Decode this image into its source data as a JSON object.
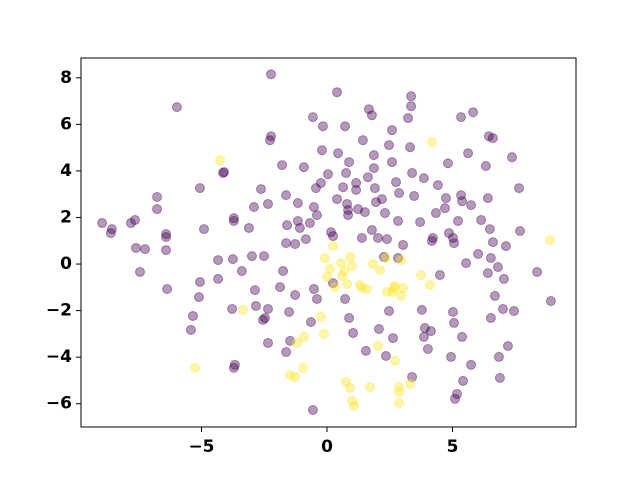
{
  "chart_data": {
    "type": "scatter",
    "xlim": [
      -9.8,
      9.92
    ],
    "ylim": [
      -7.0,
      8.85
    ],
    "xticks": [
      {
        "value": -5,
        "label": "−5"
      },
      0,
      5
    ],
    "yticks": [
      {
        "value": -6,
        "label": "−6"
      },
      {
        "value": -4,
        "label": "−4"
      },
      {
        "value": -2,
        "label": "−2"
      },
      0,
      2,
      4,
      6,
      8
    ],
    "marker_opacity": 0.4,
    "series": [
      {
        "color": "#440154",
        "x": [
          -8.96,
          -8.57,
          -8.61,
          -7.81,
          -7.65,
          -7.61,
          -7.25,
          -7.45,
          -6.77,
          -6.77,
          -6.41,
          -6.41,
          -6.41,
          -6.37,
          -2.23,
          -5.98,
          -5.06,
          -4.1,
          -4.14,
          -5.34,
          -5.42,
          -5.1,
          -5.06,
          -4.34,
          -3.71,
          -3.71,
          -3.75,
          -4.34,
          -3.78,
          -3.67,
          -3.71,
          -3.11,
          -2.87,
          -2.83,
          -2.47,
          -2.35,
          -2.55,
          -2.63,
          -2.35,
          -2.23,
          -2.27,
          -2.35,
          -2.51,
          -1.79,
          -1.63,
          -1.59,
          -1.63,
          -1.75,
          -1.51,
          -1.47,
          -1.27,
          -1.16,
          -1.16,
          -0.92,
          -0.84,
          -0.52,
          -0.56,
          -0.2,
          -0.16,
          -0.44,
          -0.4,
          0.04,
          0.16,
          0.24,
          0.4,
          0.4,
          0.44,
          0.64,
          0.72,
          0.76,
          0.8,
          0.84,
          0.88,
          0.84,
          1.16,
          1.16,
          1.24,
          1.43,
          1.51,
          1.63,
          1.67,
          1.79,
          1.79,
          1.87,
          1.87,
          1.91,
          1.95,
          2.03,
          2.19,
          2.31,
          2.39,
          2.47,
          2.59,
          2.59,
          2.75,
          2.83,
          2.87,
          3.03,
          3.23,
          3.35,
          3.35,
          3.31,
          3.39,
          3.47,
          3.71,
          3.86,
          4.18,
          4.22,
          4.34,
          4.5,
          4.42,
          4.7,
          4.74,
          4.82,
          4.86,
          5.02,
          5.06,
          5.06,
          5.22,
          5.34,
          5.38,
          5.34,
          5.62,
          5.54,
          5.74,
          5.82,
          6.33,
          6.41,
          6.41,
          6.49,
          6.45,
          6.53,
          6.61,
          6.61,
          6.81,
          6.53,
          6.69,
          7.01,
          7.05,
          7.21,
          6.85,
          7.37,
          7.45,
          7.65,
          7.69,
          8.37,
          8.92,
          -0.68,
          0.24,
          0.88,
          1.04,
          1.39,
          0.72,
          -1.63,
          -0.56,
          -0.64,
          2.35,
          3.39,
          3.86,
          3.9,
          4.14,
          4.02,
          4.94,
          5.1,
          5.18,
          5.42,
          5.38,
          5.74,
          6.02,
          7.13,
          6.14,
          2.47,
          2.27,
          -1.27,
          -0.52,
          -0.4,
          1.55,
          2.07,
          2.63,
          2.83,
          -2.99,
          -3.39,
          -4.9,
          -2.91,
          -1.87,
          3.78,
          -0.24,
          -1.08,
          6.89,
          5.02
        ],
        "values": [
          1.76,
          1.5,
          1.33,
          1.76,
          1.89,
          0.69,
          0.64,
          -0.34,
          2.88,
          2.36,
          1.29,
          1.16,
          0.6,
          -1.07,
          8.15,
          6.74,
          3.26,
          3.95,
          3.91,
          -2.23,
          -2.83,
          -1.42,
          -0.77,
          0.17,
          1.97,
          1.85,
          0.21,
          -0.64,
          -1.93,
          -4.33,
          -4.46,
          1.55,
          -1.12,
          -1.8,
          -2.32,
          -1.93,
          -2.4,
          3.22,
          2.58,
          5.49,
          5.32,
          -3.39,
          0.34,
          4.25,
          2.96,
          1.67,
          0.9,
          -0.3,
          -2.06,
          -3.3,
          0.86,
          1.85,
          2.62,
          4.16,
          1.07,
          2.45,
          6.31,
          4.89,
          5.92,
          3.26,
          2.1,
          3.86,
          1.37,
          1.2,
          2.79,
          7.38,
          4.76,
          3.3,
          5.92,
          3.91,
          2.58,
          2.32,
          4.38,
          2.1,
          3.48,
          3.18,
          2.36,
          5.32,
          2.23,
          3.73,
          6.65,
          6.39,
          1.46,
          4.68,
          4.12,
          3.26,
          2.66,
          1.12,
          2.79,
          2.19,
          1.07,
          5.11,
          5.75,
          4.38,
          3.52,
          1.85,
          3.05,
          0.82,
          6.27,
          7.21,
          6.78,
          5.02,
          3.91,
          2.92,
          1.8,
          3.69,
          0.99,
          1.12,
          2.19,
          -0.47,
          3.39,
          2.4,
          2.83,
          4.33,
          1.33,
          1.12,
          -2.53,
          0.9,
          1.85,
          2.96,
          2.7,
          6.31,
          4.76,
          0.04,
          2.53,
          6.52,
          4.21,
          2.83,
          -0.39,
          1.5,
          5.49,
          0.26,
          5.41,
          0.94,
          -0.13,
          -2.32,
          -1.37,
          -1.93,
          -0.64,
          -3.52,
          -3.99,
          4.59,
          -2.02,
          3.26,
          1.42,
          -0.34,
          -1.59,
          1.76,
          -0.82,
          -2.32,
          -2.96,
          1.12,
          -1.5,
          -3.78,
          -6.27,
          -2.49,
          -3.95,
          -4.85,
          -3.13,
          -2.75,
          -2.88,
          -3.65,
          -3.99,
          -5.79,
          -5.58,
          -5.02,
          -3.13,
          -4.33,
          0.43,
          0.77,
          1.89,
          -2.02,
          0.3,
          -1.33,
          -1.07,
          -1.5,
          -3.73,
          -2.79,
          -3.18,
          0.26,
          0.34,
          -0.3,
          1.5,
          2.45,
          -0.99,
          -1.97,
          3.48,
          1.55,
          -4.89,
          -2.06
        ]
      },
      {
        "color": "#fde725",
        "x": [
          -4.26,
          -3.35,
          -5.26,
          -1.47,
          -1.27,
          -0.96,
          -1.2,
          -0.92,
          -0.12,
          -0.08,
          0.24,
          0.12,
          0.0,
          0.56,
          0.68,
          0.6,
          0.92,
          1.0,
          0.8,
          1.39,
          1.31,
          1.59,
          1.83,
          2.11,
          2.35,
          2.39,
          2.59,
          2.67,
          2.71,
          2.95,
          3.03,
          2.95,
          3.75,
          4.1,
          2.03,
          2.71,
          0.76,
          0.92,
          1.0,
          1.08,
          1.71,
          2.87,
          2.87,
          2.87,
          3.31,
          4.18,
          8.88,
          -0.24,
          0.32
        ],
        "values": [
          4.46,
          -1.97,
          -4.46,
          -4.76,
          -4.85,
          -4.46,
          -3.39,
          -3.13,
          -3.0,
          0.26,
          0.77,
          -0.21,
          -0.56,
          0.04,
          -0.3,
          -0.52,
          0.3,
          -0.09,
          -0.86,
          -1.03,
          -0.9,
          -1.07,
          0.0,
          -0.26,
          0.26,
          -1.2,
          -1.2,
          -1.03,
          -0.94,
          0.17,
          -1.03,
          -1.37,
          -0.47,
          -0.9,
          -3.52,
          -4.16,
          -5.06,
          -5.32,
          -5.88,
          -6.09,
          -5.28,
          -5.28,
          -5.49,
          -5.97,
          -5.15,
          5.24,
          1.03,
          -2.27,
          -0.99
        ]
      }
    ]
  }
}
